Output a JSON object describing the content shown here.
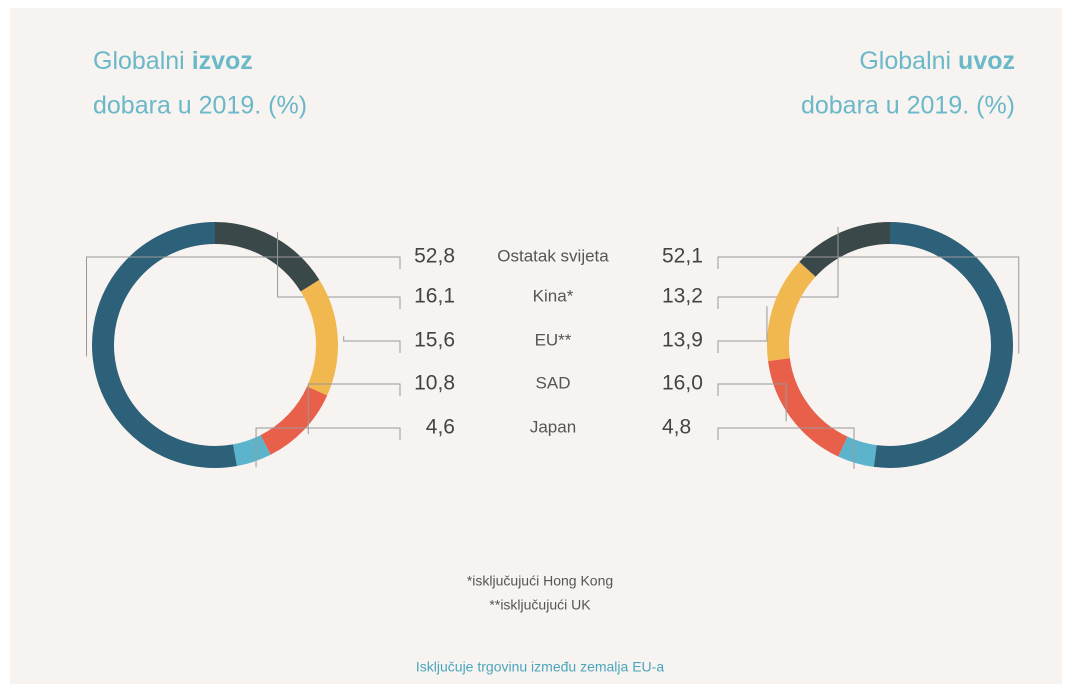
{
  "chart_data": [
    {
      "type": "pie",
      "title": [
        "Globalni",
        "izvoz",
        "dobara u 2019. (%)"
      ],
      "categories": [
        "Ostatak svijeta",
        "Kina*",
        "EU**",
        "SAD",
        "Japan"
      ],
      "values": [
        52.8,
        16.1,
        15.6,
        10.8,
        4.6
      ],
      "value_labels": [
        "52,8",
        "16,1",
        "15,6",
        "10,8",
        "4,6"
      ],
      "colors": [
        "#2d6079",
        "#3a4849",
        "#f0b84e",
        "#e8604a",
        "#5cb4cc"
      ]
    },
    {
      "type": "pie",
      "title": [
        "Globalni",
        "uvoz",
        "dobara u 2019. (%)"
      ],
      "values": [
        52.1,
        13.2,
        13.9,
        16.0,
        4.8
      ],
      "value_labels": [
        "52,1",
        "13,2",
        "13,9",
        "16,0",
        "4,8"
      ],
      "colors": [
        "#2d6079",
        "#3a4849",
        "#f0b84e",
        "#e8604a",
        "#5cb4cc"
      ]
    }
  ],
  "footnotes": [
    "*isključujući Hong Kong",
    "**isključujući UK"
  ],
  "note": "Isključuje trgovinu između zemalja EU-a"
}
